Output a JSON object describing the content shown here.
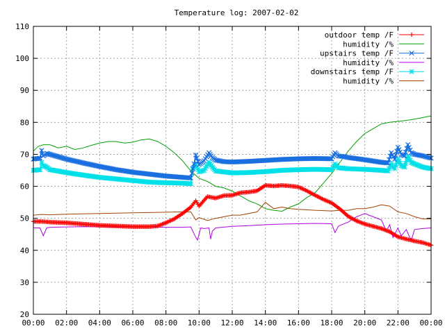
{
  "chart_data": {
    "type": "line",
    "title": "Temperature log: 2007-02-02",
    "xlabel": "",
    "ylabel": "",
    "xlim": [
      0,
      24
    ],
    "ylim": [
      20,
      110
    ],
    "grid": true,
    "legend_position": "top-right",
    "y_ticks": [
      20,
      30,
      40,
      50,
      60,
      70,
      80,
      90,
      100,
      110
    ],
    "y_tick_labels": [
      "20",
      "30",
      "40",
      "50",
      "60",
      "70",
      "80",
      "90",
      "100",
      "110"
    ],
    "x_ticks": [
      0,
      2,
      4,
      6,
      8,
      10,
      12,
      14,
      16,
      18,
      20,
      22,
      24
    ],
    "x_tick_labels": [
      "00:00",
      "02:00",
      "04:00",
      "06:00",
      "08:00",
      "10:00",
      "12:00",
      "14:00",
      "16:00",
      "18:00",
      "20:00",
      "22:00",
      "00:00"
    ],
    "series": [
      {
        "name": "outdoor temp /F",
        "color": "#ff0000",
        "marker": "plus",
        "x": [
          0,
          0.5,
          1,
          2,
          3,
          4,
          5,
          6,
          7,
          7.5,
          8,
          8.5,
          9,
          9.5,
          9.8,
          10,
          10.5,
          11,
          11.5,
          12,
          12.5,
          13,
          13.5,
          14,
          14.5,
          15,
          15.5,
          16,
          16.5,
          17,
          17.5,
          18,
          18.5,
          19,
          19.5,
          20,
          20.5,
          21,
          21.5,
          22,
          22.5,
          23,
          23.5,
          24
        ],
        "y": [
          49,
          49,
          48.8,
          48.6,
          48.2,
          47.8,
          47.6,
          47.4,
          47.4,
          47.6,
          48.6,
          49.8,
          51.5,
          53.5,
          55.5,
          53.8,
          56.8,
          56.3,
          57.1,
          57.2,
          58.0,
          58.2,
          58.6,
          60.3,
          60.1,
          60.3,
          60.1,
          59.8,
          58.6,
          57.2,
          55.9,
          54.8,
          52.9,
          50.6,
          49.2,
          48.2,
          47.5,
          46.8,
          45.8,
          44.2,
          43.5,
          42.9,
          42.4,
          41.6
        ]
      },
      {
        "name": "humidity /%",
        "color": "#00a000",
        "marker": "none",
        "x": [
          0,
          0.3,
          0.6,
          1,
          1.5,
          2,
          2.5,
          3,
          3.5,
          4,
          4.5,
          5,
          5.5,
          6,
          6.5,
          7,
          7.5,
          8,
          8.5,
          9,
          9.5,
          10,
          10.5,
          11,
          11.5,
          12,
          12.5,
          13,
          13.5,
          14,
          14.5,
          15,
          15.5,
          16,
          16.5,
          17,
          17.5,
          18,
          18.5,
          19,
          19.5,
          20,
          20.5,
          21,
          21.5,
          22,
          22.5,
          23,
          23.5,
          24
        ],
        "y": [
          71,
          72.5,
          73.0,
          73.0,
          72.0,
          72.5,
          71.5,
          72.0,
          72.8,
          73.5,
          74.0,
          74.0,
          73.5,
          73.8,
          74.5,
          74.8,
          74.0,
          72.5,
          70.5,
          68.0,
          64.8,
          62.5,
          61.5,
          60.0,
          59.5,
          58.5,
          57.0,
          55.5,
          54.5,
          53.0,
          52.5,
          52.2,
          53.5,
          54.5,
          56.5,
          58.0,
          61.0,
          64.0,
          67.5,
          71.0,
          74.0,
          76.5,
          78.0,
          79.5,
          80.0,
          80.3,
          80.6,
          81.0,
          81.5,
          82.0
        ]
      },
      {
        "name": "upstairs temp /F",
        "color": "#1a6fe0",
        "marker": "x",
        "x": [
          0,
          0.4,
          0.5,
          0.6,
          0.8,
          1,
          2,
          3,
          4,
          5,
          6,
          7,
          8,
          9,
          9.5,
          9.7,
          9.8,
          10,
          10.3,
          10.6,
          10.8,
          11,
          11.5,
          12,
          13,
          14,
          15,
          16,
          17,
          18,
          18.2,
          18.4,
          18.7,
          19,
          20,
          21,
          21.4,
          21.6,
          21.8,
          22,
          22.2,
          22.4,
          22.6,
          22.8,
          23,
          23.5,
          24
        ],
        "y": [
          68.5,
          68.8,
          71.2,
          69.5,
          70.3,
          70.0,
          68.5,
          67.3,
          66.2,
          65.2,
          64.4,
          63.8,
          63.2,
          62.8,
          62.6,
          67.0,
          69.8,
          66.8,
          68.0,
          70.5,
          69.0,
          68.2,
          67.7,
          67.6,
          67.8,
          68.1,
          68.4,
          68.6,
          68.7,
          68.6,
          70.5,
          69.5,
          69.3,
          69.0,
          68.3,
          67.5,
          67.3,
          70.5,
          68.5,
          72.2,
          70.0,
          69.5,
          73.0,
          70.5,
          70.0,
          69.5,
          68.8
        ]
      },
      {
        "name": "humidity /%",
        "color": "#b000e0",
        "marker": "none",
        "x": [
          0,
          0.4,
          0.6,
          0.8,
          1,
          2,
          3,
          4,
          5,
          6,
          7,
          8,
          9,
          9.5,
          9.8,
          9.9,
          10.1,
          10.3,
          10.6,
          10.7,
          10.8,
          11,
          12,
          13,
          14,
          15,
          16,
          17,
          18,
          18.2,
          18.4,
          18.6,
          19,
          19.5,
          20,
          20.5,
          21,
          21.3,
          21.5,
          21.7,
          22,
          22.2,
          22.5,
          22.8,
          23,
          23.5,
          24
        ],
        "y": [
          47,
          47.0,
          44.5,
          47.0,
          47.2,
          47.3,
          47.4,
          47.3,
          47.3,
          47.3,
          47.3,
          47.2,
          47.2,
          47.3,
          44.0,
          43.2,
          47.0,
          46.8,
          47.0,
          43.5,
          46.0,
          47.0,
          47.5,
          47.7,
          48.0,
          48.2,
          48.3,
          48.4,
          48.3,
          45.5,
          47.5,
          48.0,
          48.8,
          50.5,
          51.5,
          50.5,
          49.5,
          46.0,
          48.0,
          44.0,
          47.0,
          44.5,
          46.5,
          43.0,
          46.5,
          46.8,
          47.0
        ]
      },
      {
        "name": "downstairs temp /F",
        "color": "#00e0e8",
        "marker": "star",
        "x": [
          0,
          0.4,
          0.5,
          0.6,
          0.8,
          1,
          2,
          3,
          4,
          5,
          6,
          7,
          8,
          9,
          9.5,
          9.6,
          9.8,
          10,
          10.3,
          10.6,
          10.8,
          11,
          12,
          13,
          14,
          15,
          16,
          17,
          18,
          18.2,
          18.4,
          19,
          20,
          21,
          21.4,
          21.6,
          21.8,
          22,
          22.2,
          22.4,
          22.6,
          22.8,
          23,
          23.5,
          24
        ],
        "y": [
          65.0,
          65.2,
          67.5,
          66.5,
          66.0,
          65.2,
          64.3,
          63.5,
          62.8,
          62.3,
          61.8,
          61.3,
          61.1,
          61.0,
          60.8,
          65.5,
          66.8,
          64.5,
          65.0,
          67.5,
          66.0,
          64.8,
          64.2,
          64.3,
          64.6,
          65.0,
          65.2,
          65.3,
          65.2,
          67.0,
          65.8,
          65.5,
          65.3,
          65.0,
          64.8,
          67.0,
          65.5,
          68.5,
          66.5,
          66.0,
          69.5,
          67.5,
          67.0,
          66.0,
          65.5
        ]
      },
      {
        "name": "humidity /%",
        "color": "#a04000",
        "marker": "none",
        "x": [
          0,
          0.5,
          1,
          2,
          3,
          4,
          5,
          6,
          7,
          8,
          9,
          9.5,
          9.8,
          10,
          10.5,
          11,
          11.5,
          12,
          12.5,
          13,
          13.5,
          14,
          14.5,
          15,
          15.5,
          16,
          17,
          18,
          18.5,
          19,
          19.5,
          20,
          20.5,
          21,
          21.5,
          22,
          22.5,
          23,
          23.5,
          24
        ],
        "y": [
          51.0,
          51.2,
          51.1,
          51.3,
          51.4,
          51.5,
          51.6,
          51.7,
          51.8,
          51.9,
          52.0,
          52.0,
          49.5,
          50.2,
          49.3,
          50.0,
          50.5,
          51.0,
          51.0,
          51.5,
          52.0,
          55.0,
          53.0,
          53.5,
          53.0,
          52.8,
          52.5,
          52.3,
          52.5,
          52.5,
          53.0,
          53.0,
          53.5,
          54.2,
          53.8,
          52.0,
          51.5,
          50.5,
          49.8,
          49.8
        ]
      }
    ]
  }
}
